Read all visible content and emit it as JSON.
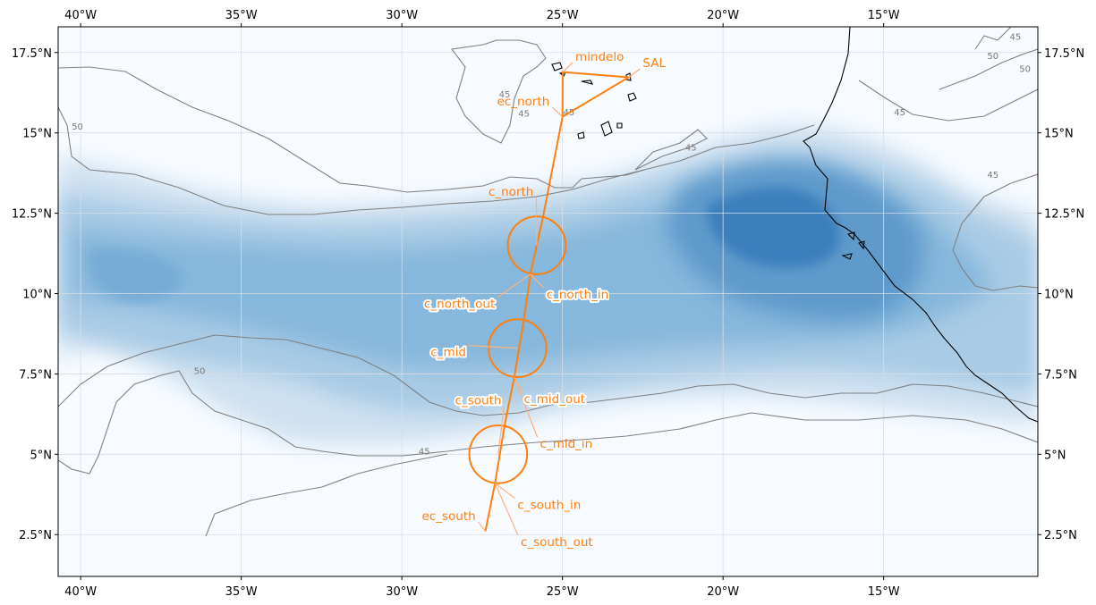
{
  "map": {
    "lon_range": [
      -40.7,
      -10.2
    ],
    "lat_range": [
      1.2,
      18.3
    ],
    "x_ticks": [
      {
        "lon": -40,
        "label": "40°W"
      },
      {
        "lon": -35,
        "label": "35°W"
      },
      {
        "lon": -30,
        "label": "30°W"
      },
      {
        "lon": -25,
        "label": "25°W"
      },
      {
        "lon": -20,
        "label": "20°W"
      },
      {
        "lon": -15,
        "label": "15°W"
      }
    ],
    "y_ticks": [
      {
        "lat": 2.5,
        "label": "2.5°N"
      },
      {
        "lat": 5,
        "label": "5°N"
      },
      {
        "lat": 7.5,
        "label": "7.5°N"
      },
      {
        "lat": 10,
        "label": "10°N"
      },
      {
        "lat": 12.5,
        "label": "12.5°N"
      },
      {
        "lat": 15,
        "label": "15°N"
      },
      {
        "lat": 17.5,
        "label": "17.5°N"
      }
    ],
    "grid": true,
    "colors": {
      "route": "#ff7f0e",
      "field_low": "#f7fbff",
      "field_high": "#3a7fbd",
      "contour": "#808080",
      "coast": "#000000"
    },
    "contour_levels": [
      "45",
      "50"
    ],
    "waypoints": [
      {
        "name": "mindelo",
        "lon": -24.99,
        "lat": 16.89
      },
      {
        "name": "SAL",
        "lon": -22.94,
        "lat": 16.73
      },
      {
        "name": "ec_north",
        "lon": -25.0,
        "lat": 15.5
      },
      {
        "name": "c_north",
        "lon": -25.8,
        "lat": 11.5
      },
      {
        "name": "c_north_out",
        "lon": -26.0,
        "lat": 10.6
      },
      {
        "name": "c_north_in",
        "lon": -25.6,
        "lat": 12.4
      },
      {
        "name": "c_mid",
        "lon": -26.4,
        "lat": 8.3
      },
      {
        "name": "c_mid_out",
        "lon": -26.2,
        "lat": 9.2
      },
      {
        "name": "c_mid_in",
        "lon": -26.5,
        "lat": 7.4
      },
      {
        "name": "c_south",
        "lon": -27.0,
        "lat": 5.0
      },
      {
        "name": "c_south_in",
        "lon": -27.1,
        "lat": 4.1
      },
      {
        "name": "c_south_out",
        "lon": -26.8,
        "lat": 5.9
      },
      {
        "name": "ec_south",
        "lon": -27.4,
        "lat": 2.6
      }
    ],
    "circles": [
      {
        "name": "c_north",
        "lon": -25.8,
        "lat": 11.5,
        "radius_deg": 0.9
      },
      {
        "name": "c_mid",
        "lon": -26.4,
        "lat": 8.3,
        "radius_deg": 0.9
      },
      {
        "name": "c_south",
        "lon": -27.0,
        "lat": 5.0,
        "radius_deg": 0.9
      }
    ],
    "labels": [
      {
        "text": "mindelo",
        "lon": -24.6,
        "lat": 17.25,
        "anchor": "start",
        "halo": false,
        "target": "mindelo"
      },
      {
        "text": "SAL",
        "lon": -22.5,
        "lat": 17.05,
        "anchor": "start",
        "halo": false,
        "target": "SAL"
      },
      {
        "text": "ec_north",
        "lon": -25.4,
        "lat": 15.85,
        "anchor": "end",
        "halo": false,
        "target": "ec_north"
      },
      {
        "text": "c_north",
        "lon": -25.9,
        "lat": 13.05,
        "anchor": "end",
        "halo": false,
        "target": "c_north"
      },
      {
        "text": "c_north_out",
        "lon": -27.1,
        "lat": 9.55,
        "anchor": "end",
        "halo": true,
        "target": "c_north_out"
      },
      {
        "text": "c_north_in",
        "lon": -25.5,
        "lat": 9.85,
        "anchor": "start",
        "halo": true,
        "target": "c_north_out"
      },
      {
        "text": "c_mid",
        "lon": -28.0,
        "lat": 8.05,
        "anchor": "end",
        "halo": true,
        "target": "c_mid"
      },
      {
        "text": "c_south",
        "lon": -26.9,
        "lat": 6.55,
        "anchor": "end",
        "halo": true,
        "target": "c_south"
      },
      {
        "text": "c_mid_out",
        "lon": -26.2,
        "lat": 6.6,
        "anchor": "start",
        "halo": true,
        "target": "c_mid_in"
      },
      {
        "text": "c_mid_in",
        "lon": -25.7,
        "lat": 5.2,
        "anchor": "start",
        "halo": false,
        "target": "c_mid_in"
      },
      {
        "text": "c_south_in",
        "lon": -26.4,
        "lat": 3.3,
        "anchor": "start",
        "halo": false,
        "target": "c_south_in"
      },
      {
        "text": "ec_south",
        "lon": -27.7,
        "lat": 2.95,
        "anchor": "end",
        "halo": false,
        "target": "ec_south"
      },
      {
        "text": "c_south_out",
        "lon": -26.3,
        "lat": 2.15,
        "anchor": "start",
        "halo": false,
        "target": "c_south_in"
      }
    ],
    "contour_labels": [
      {
        "text": "45",
        "lon": -24.8,
        "lat": 15.55
      },
      {
        "text": "45",
        "lon": -26.2,
        "lat": 15.5
      },
      {
        "text": "45",
        "lon": -26.8,
        "lat": 16.1
      },
      {
        "text": "45",
        "lon": -21.0,
        "lat": 14.45
      },
      {
        "text": "45",
        "lon": -14.5,
        "lat": 15.55
      },
      {
        "text": "45",
        "lon": -11.6,
        "lat": 13.6
      },
      {
        "text": "45",
        "lon": -29.3,
        "lat": 5.0
      },
      {
        "text": "45",
        "lon": -10.9,
        "lat": 17.9
      },
      {
        "text": "50",
        "lon": -11.6,
        "lat": 17.3
      },
      {
        "text": "50",
        "lon": -10.6,
        "lat": 16.9
      },
      {
        "text": "50",
        "lon": -40.1,
        "lat": 15.1
      },
      {
        "text": "50",
        "lon": -36.3,
        "lat": 7.5
      }
    ]
  }
}
